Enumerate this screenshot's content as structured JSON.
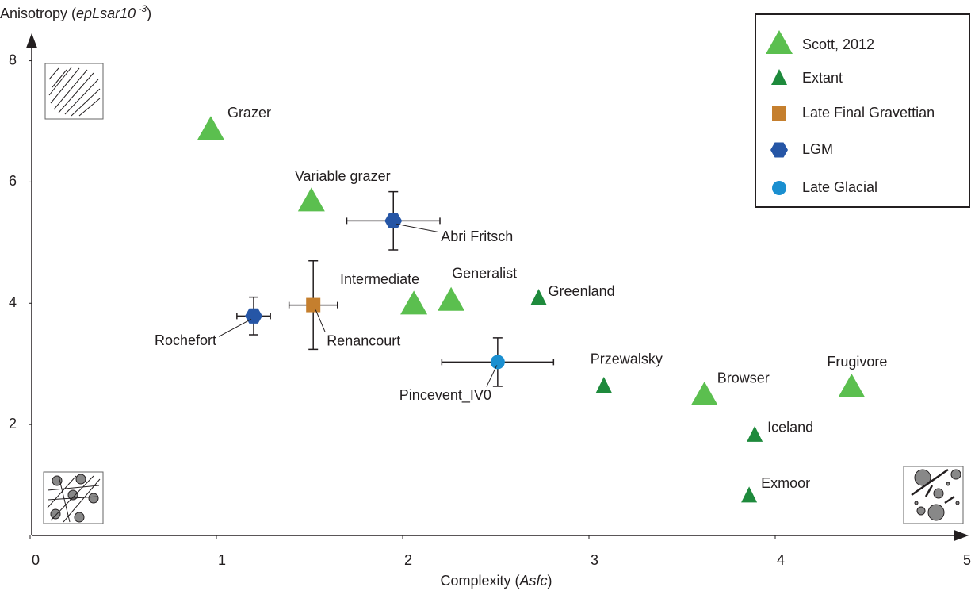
{
  "chart_data": {
    "type": "scatter",
    "xlabel_parts": [
      "Complexity (",
      "Asfc",
      ")"
    ],
    "ylabel_parts": [
      "Anisotropy (",
      "epLsar10",
      " -3",
      ")"
    ],
    "xlim": [
      0,
      5
    ],
    "ylim": [
      0.17,
      8.4
    ],
    "xticks": [
      0,
      1,
      2,
      3,
      4,
      5
    ],
    "yticks": [
      2,
      4,
      6,
      8
    ],
    "legend": "top-right",
    "series": [
      {
        "name": "Scott, 2012",
        "color": "#5bbf4f",
        "marker": "triangle",
        "x": [
          0.97,
          1.51,
          2.06,
          2.26,
          3.62,
          4.41
        ],
        "y": [
          6.84,
          5.66,
          3.96,
          4.02,
          2.46,
          2.59
        ],
        "labels": [
          "Grazer",
          "Variable grazer",
          "Intermediate",
          "Generalist",
          "Browser",
          "Frugivore"
        ]
      },
      {
        "name": "Extant",
        "color": "#1e8a3c",
        "marker": "small-triangle",
        "x": [
          2.73,
          3.08,
          3.89,
          3.86
        ],
        "y": [
          4.08,
          2.63,
          1.82,
          0.82
        ],
        "labels": [
          "Greenland",
          "Przewalsky",
          "Iceland",
          "Exmoor"
        ]
      },
      {
        "name": "Late Final Gravettian",
        "color": "#c57f2e",
        "marker": "square",
        "x": [
          1.52
        ],
        "y": [
          3.97
        ],
        "xerr": [
          0.13
        ],
        "yerr": [
          0.73
        ],
        "labels": [
          "Renancourt"
        ]
      },
      {
        "name": "LGM",
        "color": "#2656a6",
        "marker": "hexagon",
        "x": [
          1.95,
          1.2
        ],
        "y": [
          5.36,
          3.79
        ],
        "xerr": [
          0.25,
          0.09
        ],
        "yerr": [
          0.48,
          0.31
        ],
        "labels": [
          "Abri Fritsch",
          "Rochefort"
        ]
      },
      {
        "name": "Late Glacial",
        "color": "#1a8fd0",
        "marker": "circle",
        "x": [
          2.51
        ],
        "y": [
          3.03
        ],
        "xerr": [
          0.3
        ],
        "yerr": [
          0.4
        ],
        "labels": [
          "Pincevent_IV0"
        ]
      }
    ]
  }
}
